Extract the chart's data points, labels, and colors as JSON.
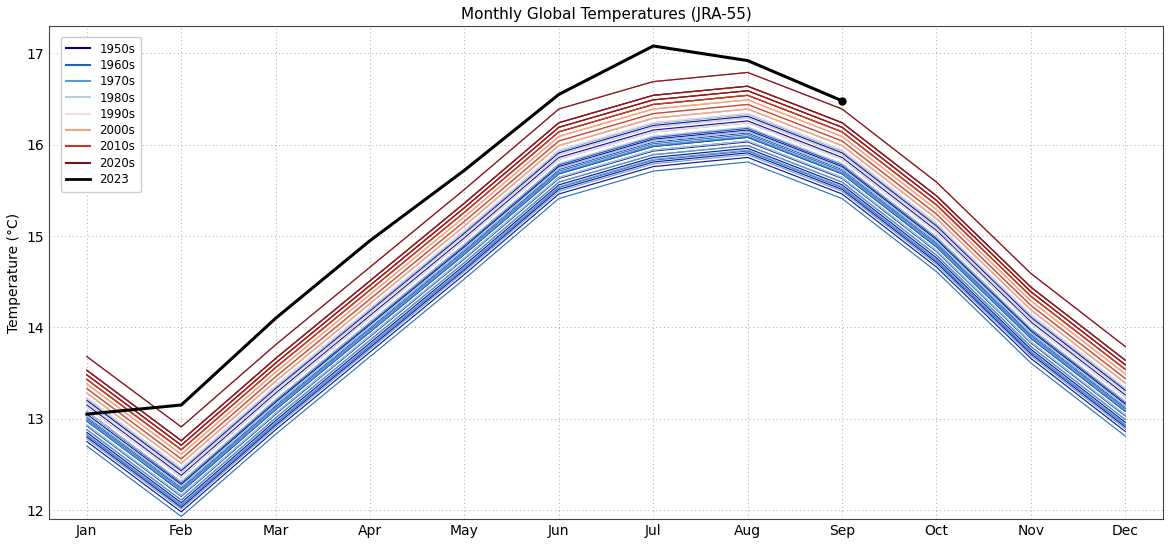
{
  "title": "Monthly Global Temperatures (JRA-55)",
  "ylabel": "Temperature (°C)",
  "ylim": [
    11.9,
    17.3
  ],
  "months": [
    "Jan",
    "Feb",
    "Mar",
    "Apr",
    "May",
    "Jun",
    "Jul",
    "Aug",
    "Sep",
    "Oct",
    "Nov",
    "Dec"
  ],
  "decade_colors": {
    "1950s": "#00008B",
    "1960s": "#1565C0",
    "1970s": "#5B9BD5",
    "1980s": "#B8CCE4",
    "1990s": "#F2DCDB",
    "2000s": "#F4A582",
    "2010s": "#C0392B",
    "2020s": "#7B1120",
    "2023": "#000000"
  },
  "year_data": {
    "1950": [
      12.98,
      12.2,
      13.1,
      13.95,
      14.8,
      15.68,
      15.98,
      16.08,
      15.68,
      14.88,
      13.88,
      13.08
    ],
    "1951": [
      13.05,
      12.28,
      13.18,
      14.03,
      14.88,
      15.76,
      16.06,
      16.16,
      15.76,
      14.96,
      13.96,
      13.16
    ],
    "1952": [
      12.92,
      12.15,
      13.05,
      13.9,
      14.75,
      15.63,
      15.93,
      16.03,
      15.63,
      14.83,
      13.83,
      13.03
    ],
    "1953": [
      13.08,
      12.3,
      13.2,
      14.05,
      14.9,
      15.78,
      16.08,
      16.18,
      15.78,
      14.98,
      13.98,
      13.18
    ],
    "1954": [
      12.85,
      12.08,
      12.98,
      13.83,
      14.68,
      15.56,
      15.86,
      15.96,
      15.56,
      14.76,
      13.76,
      12.96
    ],
    "1955": [
      12.8,
      12.03,
      12.93,
      13.78,
      14.63,
      15.51,
      15.81,
      15.91,
      15.51,
      14.71,
      13.71,
      12.91
    ],
    "1956": [
      12.75,
      11.98,
      12.88,
      13.73,
      14.58,
      15.46,
      15.76,
      15.86,
      15.46,
      14.66,
      13.66,
      12.86
    ],
    "1957": [
      13.15,
      12.38,
      13.28,
      14.13,
      14.98,
      15.86,
      16.16,
      16.26,
      15.86,
      15.06,
      14.06,
      13.26
    ],
    "1958": [
      13.2,
      12.43,
      13.33,
      14.18,
      15.03,
      15.91,
      16.21,
      16.31,
      15.91,
      15.11,
      14.11,
      13.31
    ],
    "1959": [
      13.02,
      12.25,
      13.15,
      14.0,
      14.85,
      15.73,
      16.03,
      16.13,
      15.73,
      14.93,
      13.93,
      13.13
    ],
    "1960": [
      13.0,
      12.23,
      13.13,
      13.98,
      14.83,
      15.71,
      16.01,
      16.11,
      15.71,
      14.91,
      13.91,
      13.11
    ],
    "1961": [
      13.08,
      12.3,
      13.2,
      14.05,
      14.9,
      15.78,
      16.08,
      16.18,
      15.78,
      14.98,
      13.98,
      13.18
    ],
    "1962": [
      12.97,
      12.2,
      13.1,
      13.95,
      14.8,
      15.68,
      15.98,
      16.08,
      15.68,
      14.88,
      13.88,
      13.08
    ],
    "1963": [
      12.93,
      12.16,
      13.06,
      13.91,
      14.76,
      15.64,
      15.94,
      16.04,
      15.64,
      14.84,
      13.84,
      13.04
    ],
    "1964": [
      12.7,
      11.93,
      12.83,
      13.68,
      14.53,
      15.41,
      15.71,
      15.81,
      15.41,
      14.61,
      13.61,
      12.81
    ],
    "1965": [
      12.82,
      12.05,
      12.95,
      13.8,
      14.65,
      15.53,
      15.83,
      15.93,
      15.53,
      14.73,
      13.73,
      12.93
    ],
    "1966": [
      12.98,
      12.21,
      13.11,
      13.96,
      14.81,
      15.69,
      15.99,
      16.09,
      15.69,
      14.89,
      13.89,
      13.09
    ],
    "1967": [
      13.03,
      12.26,
      13.16,
      14.01,
      14.86,
      15.74,
      16.04,
      16.14,
      15.74,
      14.94,
      13.94,
      13.14
    ],
    "1968": [
      12.88,
      12.11,
      13.01,
      13.86,
      14.71,
      15.59,
      15.89,
      15.99,
      15.59,
      14.79,
      13.79,
      12.99
    ],
    "1969": [
      13.13,
      12.36,
      13.26,
      14.11,
      14.96,
      15.84,
      16.14,
      16.24,
      15.84,
      15.04,
      14.04,
      13.24
    ],
    "1970": [
      13.03,
      12.26,
      13.16,
      14.01,
      14.86,
      15.74,
      16.04,
      16.14,
      15.74,
      14.94,
      13.94,
      13.14
    ],
    "1971": [
      12.88,
      12.11,
      13.01,
      13.86,
      14.71,
      15.59,
      15.89,
      15.99,
      15.59,
      14.79,
      13.79,
      12.99
    ],
    "1972": [
      12.98,
      12.21,
      13.11,
      13.96,
      14.81,
      15.69,
      15.99,
      16.09,
      15.69,
      14.89,
      13.89,
      13.09
    ],
    "1973": [
      13.22,
      12.45,
      13.35,
      14.2,
      15.05,
      15.93,
      16.23,
      16.33,
      15.93,
      15.13,
      14.13,
      13.33
    ],
    "1974": [
      12.83,
      12.06,
      12.96,
      13.81,
      14.66,
      15.54,
      15.84,
      15.94,
      15.54,
      14.74,
      13.74,
      12.94
    ],
    "1975": [
      12.93,
      12.16,
      13.06,
      13.91,
      14.76,
      15.64,
      15.94,
      16.04,
      15.64,
      14.84,
      13.84,
      13.04
    ],
    "1976": [
      12.78,
      12.01,
      12.91,
      13.76,
      14.61,
      15.49,
      15.79,
      15.89,
      15.49,
      14.69,
      13.69,
      12.89
    ],
    "1977": [
      13.18,
      12.41,
      13.31,
      14.16,
      15.01,
      15.89,
      16.19,
      16.29,
      15.89,
      15.09,
      14.09,
      13.29
    ],
    "1978": [
      13.08,
      12.31,
      13.21,
      14.06,
      14.91,
      15.79,
      16.09,
      16.19,
      15.79,
      14.99,
      13.99,
      13.19
    ],
    "1979": [
      13.03,
      12.26,
      13.16,
      14.01,
      14.86,
      15.74,
      16.04,
      16.14,
      15.74,
      14.94,
      13.94,
      13.14
    ],
    "1980": [
      13.13,
      12.36,
      13.26,
      14.11,
      14.96,
      15.84,
      16.14,
      16.24,
      15.84,
      15.04,
      14.04,
      13.24
    ],
    "1981": [
      13.23,
      12.46,
      13.36,
      14.21,
      15.06,
      15.94,
      16.24,
      16.34,
      15.94,
      15.14,
      14.14,
      13.34
    ],
    "1982": [
      13.03,
      12.26,
      13.16,
      14.01,
      14.86,
      15.74,
      16.04,
      16.14,
      15.74,
      14.94,
      13.94,
      13.14
    ],
    "1983": [
      13.28,
      12.51,
      13.41,
      14.26,
      15.11,
      15.99,
      16.29,
      16.39,
      15.99,
      15.19,
      14.19,
      13.39
    ],
    "1984": [
      13.03,
      12.26,
      13.16,
      14.01,
      14.86,
      15.74,
      16.04,
      16.14,
      15.74,
      14.94,
      13.94,
      13.14
    ],
    "1985": [
      12.93,
      12.16,
      13.06,
      13.91,
      14.76,
      15.64,
      15.94,
      16.04,
      15.64,
      14.84,
      13.84,
      13.04
    ],
    "1986": [
      13.08,
      12.31,
      13.21,
      14.06,
      14.91,
      15.79,
      16.09,
      16.19,
      15.79,
      14.99,
      13.99,
      13.19
    ],
    "1987": [
      13.28,
      12.51,
      13.41,
      14.26,
      15.11,
      15.99,
      16.29,
      16.39,
      15.99,
      15.19,
      14.19,
      13.39
    ],
    "1988": [
      13.23,
      12.46,
      13.36,
      14.21,
      15.06,
      15.94,
      16.24,
      16.34,
      15.94,
      15.14,
      14.14,
      13.34
    ],
    "1989": [
      13.13,
      12.36,
      13.26,
      14.11,
      14.96,
      15.84,
      16.14,
      16.24,
      15.84,
      15.04,
      14.04,
      13.24
    ],
    "1990": [
      13.33,
      12.56,
      13.46,
      14.31,
      15.16,
      16.04,
      16.34,
      16.44,
      16.04,
      15.24,
      14.24,
      13.44
    ],
    "1991": [
      13.28,
      12.51,
      13.41,
      14.26,
      15.11,
      15.99,
      16.29,
      16.39,
      15.99,
      15.19,
      14.19,
      13.39
    ],
    "1992": [
      13.13,
      12.36,
      13.26,
      14.11,
      14.96,
      15.84,
      16.14,
      16.24,
      15.84,
      15.04,
      14.04,
      13.24
    ],
    "1993": [
      13.18,
      12.41,
      13.31,
      14.16,
      15.01,
      15.89,
      16.19,
      16.29,
      15.89,
      15.09,
      14.09,
      13.29
    ],
    "1994": [
      13.28,
      12.51,
      13.41,
      14.26,
      15.11,
      15.99,
      16.29,
      16.39,
      15.99,
      15.19,
      14.19,
      13.39
    ],
    "1995": [
      13.33,
      12.56,
      13.46,
      14.31,
      15.16,
      16.04,
      16.34,
      16.44,
      16.04,
      15.24,
      14.24,
      13.44
    ],
    "1996": [
      13.13,
      12.36,
      13.26,
      14.11,
      14.96,
      15.84,
      16.14,
      16.24,
      15.84,
      15.04,
      14.04,
      13.24
    ],
    "1997": [
      13.28,
      12.51,
      13.41,
      14.26,
      15.11,
      15.99,
      16.29,
      16.39,
      15.99,
      15.19,
      14.19,
      13.39
    ],
    "1998": [
      13.48,
      12.71,
      13.61,
      14.46,
      15.31,
      16.19,
      16.49,
      16.59,
      16.19,
      15.39,
      14.39,
      13.59
    ],
    "1999": [
      13.23,
      12.46,
      13.36,
      14.21,
      15.06,
      15.94,
      16.24,
      16.34,
      15.94,
      15.14,
      14.14,
      13.34
    ],
    "2000": [
      13.28,
      12.51,
      13.41,
      14.26,
      15.11,
      15.99,
      16.29,
      16.39,
      15.99,
      15.19,
      14.19,
      13.39
    ],
    "2001": [
      13.38,
      12.61,
      13.51,
      14.36,
      15.21,
      16.09,
      16.39,
      16.49,
      16.09,
      15.29,
      14.29,
      13.49
    ],
    "2002": [
      13.43,
      12.66,
      13.56,
      14.41,
      15.26,
      16.14,
      16.44,
      16.54,
      16.14,
      15.34,
      14.34,
      13.54
    ],
    "2003": [
      13.43,
      12.66,
      13.56,
      14.41,
      15.26,
      16.14,
      16.44,
      16.54,
      16.14,
      15.34,
      14.34,
      13.54
    ],
    "2004": [
      13.33,
      12.56,
      13.46,
      14.31,
      15.16,
      16.04,
      16.34,
      16.44,
      16.04,
      15.24,
      14.24,
      13.44
    ],
    "2005": [
      13.48,
      12.71,
      13.61,
      14.46,
      15.31,
      16.19,
      16.49,
      16.59,
      16.19,
      15.39,
      14.39,
      13.59
    ],
    "2006": [
      13.38,
      12.61,
      13.51,
      14.36,
      15.21,
      16.09,
      16.39,
      16.49,
      16.09,
      15.29,
      14.29,
      13.49
    ],
    "2007": [
      13.43,
      12.66,
      13.56,
      14.41,
      15.26,
      16.14,
      16.44,
      16.54,
      16.14,
      15.34,
      14.34,
      13.54
    ],
    "2008": [
      13.28,
      12.51,
      13.41,
      14.26,
      15.11,
      15.99,
      16.29,
      16.39,
      15.99,
      15.19,
      14.19,
      13.39
    ],
    "2009": [
      13.38,
      12.61,
      13.51,
      14.36,
      15.21,
      16.09,
      16.39,
      16.49,
      16.09,
      15.29,
      14.29,
      13.49
    ],
    "2010": [
      13.48,
      12.71,
      13.61,
      14.46,
      15.31,
      16.19,
      16.49,
      16.59,
      16.19,
      15.39,
      14.39,
      13.59
    ],
    "2011": [
      13.33,
      12.56,
      13.46,
      14.31,
      15.16,
      16.04,
      16.34,
      16.44,
      16.04,
      15.24,
      14.24,
      13.44
    ],
    "2012": [
      13.43,
      12.66,
      13.56,
      14.41,
      15.26,
      16.14,
      16.44,
      16.54,
      16.14,
      15.34,
      14.34,
      13.54
    ],
    "2013": [
      13.43,
      12.66,
      13.56,
      14.41,
      15.26,
      16.14,
      16.44,
      16.54,
      16.14,
      15.34,
      14.34,
      13.54
    ],
    "2014": [
      13.48,
      12.71,
      13.61,
      14.46,
      15.31,
      16.19,
      16.49,
      16.59,
      16.19,
      15.39,
      14.39,
      13.59
    ],
    "2015": [
      13.53,
      12.76,
      13.66,
      14.51,
      15.36,
      16.24,
      16.54,
      16.64,
      16.24,
      15.44,
      14.44,
      13.64
    ],
    "2016": [
      13.68,
      12.91,
      13.81,
      14.66,
      15.51,
      16.39,
      16.69,
      16.79,
      16.39,
      15.59,
      14.59,
      13.79
    ],
    "2017": [
      13.53,
      12.76,
      13.66,
      14.51,
      15.36,
      16.24,
      16.54,
      16.64,
      16.24,
      15.44,
      14.44,
      13.64
    ],
    "2018": [
      13.43,
      12.66,
      13.56,
      14.41,
      15.26,
      16.14,
      16.44,
      16.54,
      16.14,
      15.34,
      14.34,
      13.54
    ],
    "2019": [
      13.53,
      12.76,
      13.66,
      14.51,
      15.36,
      16.24,
      16.54,
      16.64,
      16.24,
      15.44,
      14.44,
      13.64
    ],
    "2020": [
      13.68,
      12.91,
      13.81,
      14.66,
      15.51,
      16.39,
      16.69,
      16.79,
      16.39,
      15.59,
      14.59,
      13.79
    ],
    "2021": [
      13.48,
      12.71,
      13.61,
      14.46,
      15.31,
      16.19,
      16.49,
      16.59,
      16.19,
      15.39,
      14.39,
      13.59
    ],
    "2022": [
      13.53,
      12.76,
      13.66,
      14.51,
      15.36,
      16.24,
      16.54,
      16.64,
      16.24,
      15.44,
      14.44,
      13.64
    ],
    "2023": [
      13.05,
      13.15,
      14.1,
      14.95,
      15.72,
      16.55,
      17.08,
      16.92,
      16.48,
      null,
      null,
      null
    ]
  }
}
